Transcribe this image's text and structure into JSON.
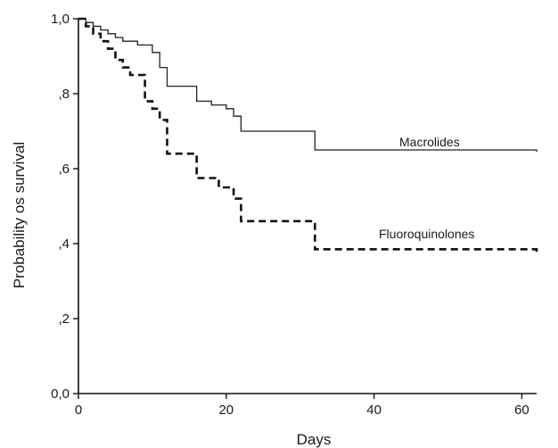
{
  "chart_data": {
    "type": "line",
    "title": "",
    "xlabel": "Days",
    "ylabel": "Probability os survival",
    "xlim": [
      0,
      62
    ],
    "ylim": [
      0,
      1
    ],
    "x_ticks": [
      0,
      20,
      40,
      60
    ],
    "x_tick_labels": [
      "0",
      "20",
      "40",
      "60"
    ],
    "y_ticks": [
      0,
      0.2,
      0.4,
      0.6,
      0.8,
      1.0
    ],
    "y_tick_labels": [
      "0,0",
      ",2",
      ",4",
      ",6",
      ",8",
      "1,0"
    ],
    "grid": false,
    "legend": "none",
    "step": true,
    "series": [
      {
        "name": "Macrolides",
        "line_style": "solid",
        "color": "#222222",
        "x": [
          0,
          1,
          2,
          3,
          4,
          5,
          6,
          8,
          10,
          11,
          12,
          16,
          18,
          20,
          21,
          22,
          32,
          62
        ],
        "y": [
          1.0,
          0.99,
          0.98,
          0.97,
          0.96,
          0.95,
          0.94,
          0.93,
          0.91,
          0.87,
          0.82,
          0.78,
          0.77,
          0.76,
          0.74,
          0.7,
          0.65,
          0.645
        ]
      },
      {
        "name": "Fluoroquinolones",
        "line_style": "dashed",
        "color": "#111111",
        "x": [
          0,
          1,
          2,
          3,
          4,
          5,
          6,
          7,
          8,
          9,
          10,
          11,
          12,
          16,
          19,
          21,
          22,
          32,
          62
        ],
        "y": [
          1.0,
          0.98,
          0.96,
          0.94,
          0.92,
          0.89,
          0.87,
          0.85,
          0.85,
          0.78,
          0.76,
          0.73,
          0.64,
          0.575,
          0.55,
          0.52,
          0.46,
          0.385,
          0.375
        ]
      }
    ]
  }
}
